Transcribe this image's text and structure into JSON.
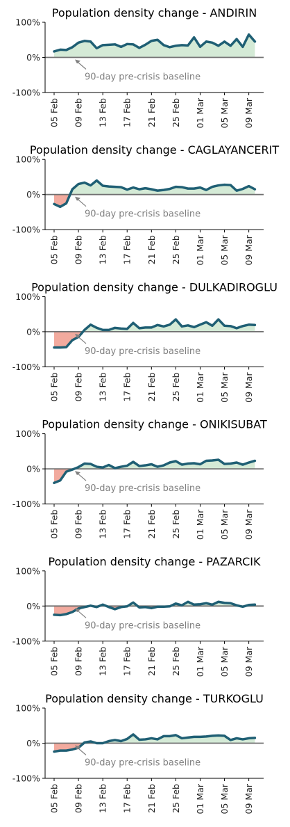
{
  "colors": {
    "line": "#1f5f74",
    "positive_fill": "#d4ead6",
    "negative_fill": "#f2aa9e",
    "baseline": "#707070",
    "annotation": "#808080",
    "axis": "#000000"
  },
  "annotation_text": "90-day pre-crisis baseline",
  "chart_data": [
    {
      "type": "area",
      "title": "Population density change - ANDIRIN",
      "ylim": [
        -100,
        100
      ],
      "yticks": [
        "100%",
        "0%",
        "-100%"
      ],
      "xticks": [
        "05 Feb",
        "09 Feb",
        "13 Feb",
        "17 Feb",
        "21 Feb",
        "25 Feb",
        "01 Mar",
        "05 Mar",
        "09 Mar"
      ],
      "grid": false,
      "x": [
        "05 Feb",
        "06 Feb",
        "07 Feb",
        "08 Feb",
        "09 Feb",
        "10 Feb",
        "11 Feb",
        "12 Feb",
        "13 Feb",
        "14 Feb",
        "15 Feb",
        "16 Feb",
        "17 Feb",
        "18 Feb",
        "19 Feb",
        "20 Feb",
        "21 Feb",
        "22 Feb",
        "23 Feb",
        "24 Feb",
        "25 Feb",
        "26 Feb",
        "27 Feb",
        "28 Feb",
        "01 Mar",
        "02 Mar",
        "03 Mar",
        "04 Mar",
        "05 Mar",
        "06 Mar",
        "07 Mar",
        "08 Mar",
        "09 Mar",
        "10 Mar"
      ],
      "values": [
        17,
        22,
        21,
        29,
        42,
        47,
        45,
        26,
        35,
        36,
        37,
        30,
        38,
        37,
        27,
        36,
        47,
        50,
        35,
        29,
        33,
        35,
        34,
        57,
        30,
        45,
        42,
        33,
        45,
        33,
        52,
        30,
        65,
        45
      ]
    },
    {
      "type": "area",
      "title": "Population density change - CAGLAYANCERIT",
      "ylim": [
        -100,
        100
      ],
      "yticks": [
        "100%",
        "0%",
        "-100%"
      ],
      "xticks": [
        "05 Feb",
        "09 Feb",
        "13 Feb",
        "17 Feb",
        "21 Feb",
        "25 Feb",
        "01 Mar",
        "05 Mar",
        "09 Mar"
      ],
      "grid": false,
      "x": [
        "05 Feb",
        "06 Feb",
        "07 Feb",
        "08 Feb",
        "09 Feb",
        "10 Feb",
        "11 Feb",
        "12 Feb",
        "13 Feb",
        "14 Feb",
        "15 Feb",
        "16 Feb",
        "17 Feb",
        "18 Feb",
        "19 Feb",
        "20 Feb",
        "21 Feb",
        "22 Feb",
        "23 Feb",
        "24 Feb",
        "25 Feb",
        "26 Feb",
        "27 Feb",
        "28 Feb",
        "01 Mar",
        "02 Mar",
        "03 Mar",
        "04 Mar",
        "05 Mar",
        "06 Mar",
        "07 Mar",
        "08 Mar",
        "09 Mar",
        "10 Mar"
      ],
      "values": [
        -27,
        -35,
        -25,
        15,
        30,
        34,
        26,
        40,
        25,
        23,
        22,
        21,
        14,
        20,
        15,
        18,
        15,
        11,
        13,
        16,
        22,
        21,
        17,
        17,
        20,
        13,
        22,
        26,
        28,
        27,
        11,
        16,
        24,
        15
      ]
    },
    {
      "type": "area",
      "title": "Population density change - DULKADIROGLU",
      "ylim": [
        -100,
        100
      ],
      "yticks": [
        "100%",
        "0%",
        "-100%"
      ],
      "xticks": [
        "05 Feb",
        "09 Feb",
        "13 Feb",
        "17 Feb",
        "21 Feb",
        "25 Feb",
        "01 Mar",
        "05 Mar",
        "09 Mar"
      ],
      "grid": false,
      "x": [
        "05 Feb",
        "06 Feb",
        "07 Feb",
        "08 Feb",
        "09 Feb",
        "10 Feb",
        "11 Feb",
        "12 Feb",
        "13 Feb",
        "14 Feb",
        "15 Feb",
        "16 Feb",
        "17 Feb",
        "18 Feb",
        "19 Feb",
        "20 Feb",
        "21 Feb",
        "22 Feb",
        "23 Feb",
        "24 Feb",
        "25 Feb",
        "26 Feb",
        "27 Feb",
        "28 Feb",
        "01 Mar",
        "02 Mar",
        "03 Mar",
        "04 Mar",
        "05 Mar",
        "06 Mar",
        "07 Mar",
        "08 Mar",
        "09 Mar",
        "10 Mar"
      ],
      "values": [
        -45,
        -45,
        -44,
        -24,
        -15,
        5,
        20,
        11,
        5,
        5,
        11,
        9,
        8,
        25,
        10,
        12,
        12,
        19,
        15,
        20,
        35,
        15,
        18,
        13,
        20,
        27,
        17,
        35,
        17,
        16,
        10,
        16,
        20,
        19
      ]
    },
    {
      "type": "area",
      "title": "Population density change - ONIKISUBAT",
      "ylim": [
        -100,
        100
      ],
      "yticks": [
        "100%",
        "0%",
        "-100%"
      ],
      "xticks": [
        "05 Feb",
        "09 Feb",
        "13 Feb",
        "17 Feb",
        "21 Feb",
        "25 Feb",
        "01 Mar",
        "05 Mar",
        "09 Mar"
      ],
      "grid": false,
      "x": [
        "05 Feb",
        "06 Feb",
        "07 Feb",
        "08 Feb",
        "09 Feb",
        "10 Feb",
        "11 Feb",
        "12 Feb",
        "13 Feb",
        "14 Feb",
        "15 Feb",
        "16 Feb",
        "17 Feb",
        "18 Feb",
        "19 Feb",
        "20 Feb",
        "21 Feb",
        "22 Feb",
        "23 Feb",
        "24 Feb",
        "25 Feb",
        "26 Feb",
        "27 Feb",
        "28 Feb",
        "01 Mar",
        "02 Mar",
        "03 Mar",
        "04 Mar",
        "05 Mar",
        "06 Mar",
        "07 Mar",
        "08 Mar",
        "09 Mar",
        "10 Mar"
      ],
      "values": [
        -40,
        -33,
        -8,
        -2,
        5,
        15,
        14,
        6,
        4,
        11,
        2,
        6,
        9,
        20,
        8,
        10,
        13,
        6,
        10,
        18,
        22,
        12,
        15,
        16,
        13,
        23,
        24,
        26,
        14,
        15,
        18,
        12,
        18,
        23
      ]
    },
    {
      "type": "area",
      "title": "Population density change - PAZARCIK",
      "ylim": [
        -100,
        100
      ],
      "yticks": [
        "100%",
        "0%",
        "-100%"
      ],
      "xticks": [
        "05 Feb",
        "09 Feb",
        "13 Feb",
        "17 Feb",
        "21 Feb",
        "25 Feb",
        "01 Mar",
        "05 Mar",
        "09 Mar"
      ],
      "grid": false,
      "x": [
        "05 Feb",
        "06 Feb",
        "07 Feb",
        "08 Feb",
        "09 Feb",
        "10 Feb",
        "11 Feb",
        "12 Feb",
        "13 Feb",
        "14 Feb",
        "15 Feb",
        "16 Feb",
        "17 Feb",
        "18 Feb",
        "19 Feb",
        "20 Feb",
        "21 Feb",
        "22 Feb",
        "23 Feb",
        "24 Feb",
        "25 Feb",
        "26 Feb",
        "27 Feb",
        "28 Feb",
        "01 Mar",
        "02 Mar",
        "03 Mar",
        "04 Mar",
        "05 Mar",
        "06 Mar",
        "07 Mar",
        "08 Mar",
        "09 Mar",
        "10 Mar"
      ],
      "values": [
        -25,
        -26,
        -23,
        -17,
        -7,
        -3,
        1,
        -3,
        4,
        -3,
        -9,
        -3,
        -1,
        10,
        -4,
        -3,
        -6,
        -2,
        -2,
        -1,
        7,
        2,
        12,
        4,
        5,
        8,
        4,
        12,
        9,
        8,
        2,
        -2,
        3,
        4
      ]
    },
    {
      "type": "area",
      "title": "Population density change - TURKOGLU",
      "ylim": [
        -100,
        100
      ],
      "yticks": [
        "100%",
        "0%",
        "-100%"
      ],
      "xticks": [
        "05 Feb",
        "09 Feb",
        "13 Feb",
        "17 Feb",
        "21 Feb",
        "25 Feb",
        "01 Mar",
        "05 Mar",
        "09 Mar"
      ],
      "grid": false,
      "x": [
        "05 Feb",
        "06 Feb",
        "07 Feb",
        "08 Feb",
        "09 Feb",
        "10 Feb",
        "11 Feb",
        "12 Feb",
        "13 Feb",
        "14 Feb",
        "15 Feb",
        "16 Feb",
        "17 Feb",
        "18 Feb",
        "19 Feb",
        "20 Feb",
        "21 Feb",
        "22 Feb",
        "23 Feb",
        "24 Feb",
        "25 Feb",
        "26 Feb",
        "27 Feb",
        "28 Feb",
        "01 Mar",
        "02 Mar",
        "03 Mar",
        "04 Mar",
        "05 Mar",
        "06 Mar",
        "07 Mar",
        "08 Mar",
        "09 Mar",
        "10 Mar"
      ],
      "values": [
        -24,
        -21,
        -21,
        -18,
        -13,
        2,
        5,
        0,
        0,
        6,
        9,
        6,
        12,
        25,
        10,
        11,
        14,
        11,
        20,
        20,
        23,
        14,
        16,
        18,
        18,
        19,
        21,
        22,
        21,
        9,
        14,
        11,
        14,
        15
      ]
    }
  ]
}
